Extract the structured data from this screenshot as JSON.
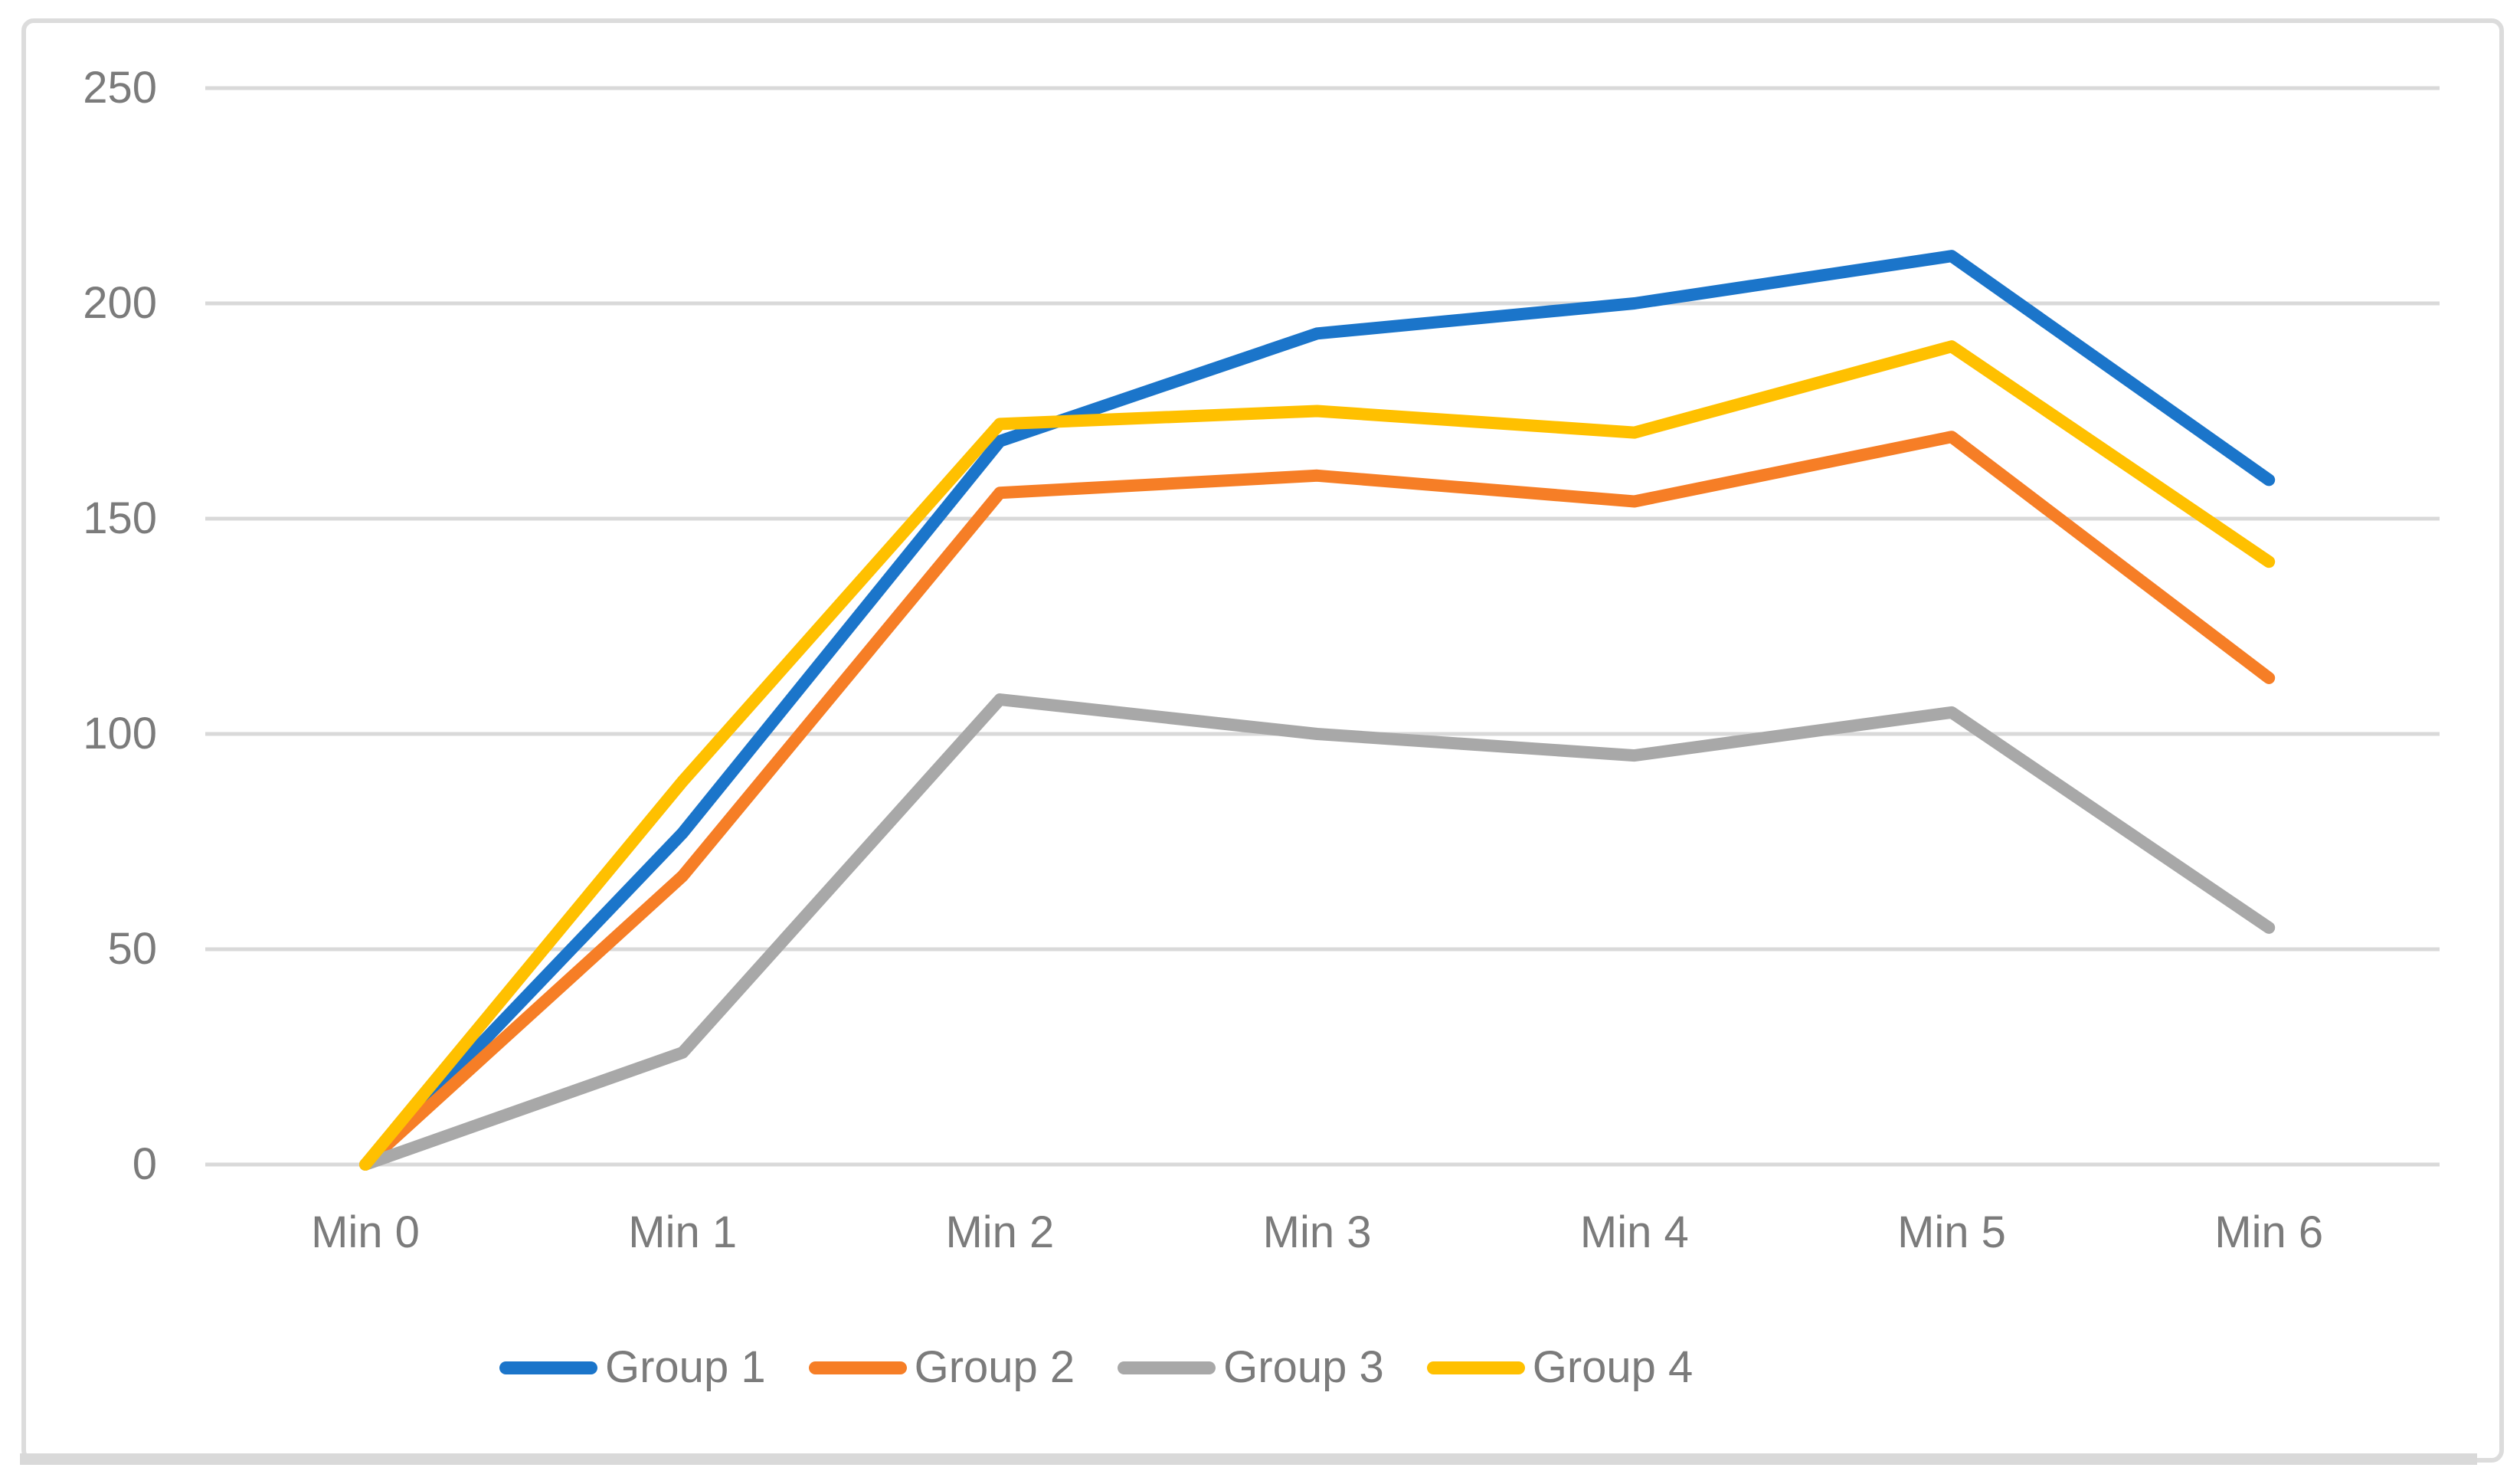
{
  "frame": {
    "border_color": "#DCDCDC",
    "bottom_bar_color": "#D9D9D9"
  },
  "chart_data": {
    "type": "line",
    "title": "",
    "xlabel": "",
    "ylabel": "",
    "categories": [
      "Min 0",
      "Min 1",
      "Min 2",
      "Min 3",
      "Min 4",
      "Min 5",
      "Min 6"
    ],
    "series": [
      {
        "name": "Group 1",
        "color": "#1B75CA",
        "values": [
          0,
          77,
          168,
          193,
          200,
          211,
          159
        ]
      },
      {
        "name": "Group 2",
        "color": "#F67E26",
        "values": [
          0,
          67,
          156,
          160,
          154,
          169,
          113
        ]
      },
      {
        "name": "Group 3",
        "color": "#A8A8A8",
        "values": [
          0,
          26,
          108,
          100,
          95,
          105,
          55
        ]
      },
      {
        "name": "Group 4",
        "color": "#FFC000",
        "values": [
          0,
          89,
          172,
          175,
          170,
          190,
          140
        ]
      }
    ],
    "ylim": [
      0,
      250
    ],
    "yticks": [
      0,
      50,
      100,
      150,
      200,
      250
    ],
    "grid": "horizontal",
    "gridline_color": "#D9D9D9",
    "tick_label_color": "#7B7B7B",
    "legend_position": "bottom"
  }
}
